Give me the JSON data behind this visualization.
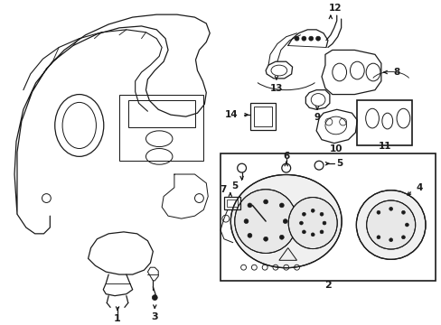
{
  "bg_color": "#ffffff",
  "line_color": "#1a1a1a",
  "figsize": [
    4.89,
    3.6
  ],
  "dpi": 100,
  "xlim": [
    0,
    489
  ],
  "ylim": [
    0,
    360
  ]
}
